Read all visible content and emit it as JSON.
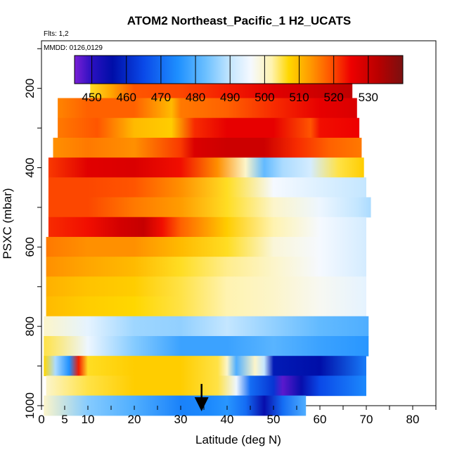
{
  "chart_data": {
    "type": "heatmap",
    "title": "ATOM2 Northeast_Pacific_1 H2_UCATS",
    "annotations": [
      "Flts: 1,2",
      "MMDD: 0126,0129"
    ],
    "xlabel": "Latitude (deg N)",
    "ylabel": "PSXC (mbar)",
    "xlim": [
      0,
      85
    ],
    "ylim": [
      1000,
      80
    ],
    "x_ticks": [
      0,
      5,
      10,
      20,
      30,
      40,
      50,
      60,
      70,
      80
    ],
    "y_ticks": [
      200,
      400,
      600,
      800,
      1000
    ],
    "colorbar": {
      "position": "top",
      "range": [
        445,
        540
      ],
      "ticks": [
        450,
        460,
        470,
        480,
        490,
        500,
        510,
        520,
        530
      ],
      "stops": [
        {
          "v": 445,
          "c": "#7a1fd6"
        },
        {
          "v": 450,
          "c": "#2a10c0"
        },
        {
          "v": 456,
          "c": "#000ea8"
        },
        {
          "v": 465,
          "c": "#0a49e8"
        },
        {
          "v": 475,
          "c": "#1e90ff"
        },
        {
          "v": 483,
          "c": "#6cc0ff"
        },
        {
          "v": 490,
          "c": "#c4e6ff"
        },
        {
          "v": 496,
          "c": "#f5f9ff"
        },
        {
          "v": 502,
          "c": "#fff3b0"
        },
        {
          "v": 507,
          "c": "#ffd700"
        },
        {
          "v": 513,
          "c": "#ff9c00"
        },
        {
          "v": 519,
          "c": "#ff5500"
        },
        {
          "v": 525,
          "c": "#ee0000"
        },
        {
          "v": 533,
          "c": "#b80000"
        },
        {
          "v": 540,
          "c": "#7a1010"
        }
      ]
    },
    "bands": [
      {
        "p": 200,
        "lat": [
          10.5,
          67
        ],
        "v": [
          [
            10.5,
            506
          ],
          [
            15,
            512
          ],
          [
            20,
            519
          ],
          [
            30,
            520
          ],
          [
            40,
            523
          ],
          [
            50,
            527
          ],
          [
            60,
            530
          ],
          [
            67,
            532
          ]
        ]
      },
      {
        "p": 250,
        "lat": [
          3.5,
          68
        ],
        "v": [
          [
            3.5,
            515
          ],
          [
            10,
            518
          ],
          [
            20,
            518
          ],
          [
            28,
            510
          ],
          [
            30,
            516
          ],
          [
            40,
            518
          ],
          [
            50,
            522
          ],
          [
            60,
            526
          ],
          [
            68,
            528
          ]
        ]
      },
      {
        "p": 300,
        "lat": [
          3.5,
          68.5
        ],
        "v": [
          [
            3.5,
            516
          ],
          [
            12,
            519
          ],
          [
            20,
            510
          ],
          [
            28,
            508
          ],
          [
            33,
            522
          ],
          [
            40,
            526
          ],
          [
            50,
            526
          ],
          [
            58,
            519
          ],
          [
            60,
            524
          ],
          [
            68.5,
            525
          ]
        ]
      },
      {
        "p": 350,
        "lat": [
          2.5,
          69
        ],
        "v": [
          [
            2.5,
            514
          ],
          [
            10,
            516
          ],
          [
            20,
            514
          ],
          [
            30,
            521
          ],
          [
            33,
            528
          ],
          [
            40,
            530
          ],
          [
            48,
            530
          ],
          [
            55,
            522
          ],
          [
            62,
            518
          ],
          [
            69,
            516
          ]
        ]
      },
      {
        "p": 400,
        "lat": [
          1.5,
          69.5
        ],
        "v": [
          [
            1.5,
            521
          ],
          [
            10,
            527
          ],
          [
            20,
            528
          ],
          [
            30,
            524
          ],
          [
            38,
            514
          ],
          [
            44,
            500
          ],
          [
            48,
            482
          ],
          [
            52,
            488
          ],
          [
            58,
            492
          ],
          [
            64,
            505
          ],
          [
            69.5,
            508
          ]
        ]
      },
      {
        "p": 450,
        "lat": [
          1.5,
          70
        ],
        "v": [
          [
            1.5,
            520
          ],
          [
            10,
            520
          ],
          [
            20,
            519
          ],
          [
            30,
            514
          ],
          [
            40,
            506
          ],
          [
            50,
            496
          ],
          [
            60,
            493
          ],
          [
            70,
            490
          ]
        ]
      },
      {
        "p": 500,
        "lat": [
          1.5,
          71
        ],
        "v": [
          [
            1.5,
            520
          ],
          [
            10,
            520
          ],
          [
            20,
            516
          ],
          [
            30,
            513
          ],
          [
            40,
            506
          ],
          [
            50,
            500
          ],
          [
            60,
            495
          ],
          [
            68,
            490
          ],
          [
            71,
            488
          ]
        ]
      },
      {
        "p": 550,
        "lat": [
          1.5,
          70
        ],
        "v": [
          [
            1.5,
            522
          ],
          [
            10,
            524
          ],
          [
            17,
            529
          ],
          [
            22,
            531
          ],
          [
            26,
            524
          ],
          [
            30,
            518
          ],
          [
            40,
            508
          ],
          [
            50,
            502
          ],
          [
            60,
            496
          ],
          [
            70,
            492
          ]
        ]
      },
      {
        "p": 600,
        "lat": [
          1,
          70
        ],
        "v": [
          [
            1,
            516
          ],
          [
            10,
            514
          ],
          [
            20,
            514
          ],
          [
            30,
            510
          ],
          [
            40,
            506
          ],
          [
            50,
            499
          ],
          [
            60,
            496
          ],
          [
            70,
            492
          ]
        ]
      },
      {
        "p": 650,
        "lat": [
          1,
          70
        ],
        "v": [
          [
            1,
            514
          ],
          [
            10,
            512
          ],
          [
            20,
            510
          ],
          [
            30,
            506
          ],
          [
            40,
            503
          ],
          [
            50,
            500
          ],
          [
            60,
            496
          ],
          [
            70,
            492
          ]
        ]
      },
      {
        "p": 700,
        "lat": [
          1,
          70
        ],
        "v": [
          [
            1,
            511
          ],
          [
            10,
            509
          ],
          [
            20,
            508
          ],
          [
            30,
            505
          ],
          [
            40,
            502
          ],
          [
            50,
            500
          ],
          [
            60,
            497
          ],
          [
            70,
            494
          ]
        ]
      },
      {
        "p": 750,
        "lat": [
          1,
          70
        ],
        "v": [
          [
            1,
            510
          ],
          [
            10,
            508
          ],
          [
            20,
            507
          ],
          [
            30,
            505
          ],
          [
            40,
            502
          ],
          [
            50,
            500
          ],
          [
            60,
            497
          ],
          [
            70,
            494
          ]
        ]
      },
      {
        "p": 800,
        "lat": [
          0.5,
          70.5
        ],
        "v": [
          [
            0.5,
            500
          ],
          [
            10,
            494
          ],
          [
            20,
            487
          ],
          [
            30,
            486
          ],
          [
            40,
            490
          ],
          [
            50,
            486
          ],
          [
            60,
            482
          ],
          [
            70.5,
            480
          ]
        ]
      },
      {
        "p": 850,
        "lat": [
          0.5,
          70.5
        ],
        "v": [
          [
            0.5,
            505
          ],
          [
            10,
            495
          ],
          [
            20,
            485
          ],
          [
            30,
            478
          ],
          [
            40,
            478
          ],
          [
            50,
            481
          ],
          [
            60,
            478
          ],
          [
            70.5,
            476
          ]
        ]
      },
      {
        "p": 900,
        "lat": [
          0.5,
          70
        ],
        "v": [
          [
            0.5,
            507
          ],
          [
            3,
            488
          ],
          [
            6,
            475
          ],
          [
            8,
            523
          ],
          [
            10,
            506
          ],
          [
            20,
            508
          ],
          [
            30,
            508
          ],
          [
            38,
            505
          ],
          [
            40,
            500
          ],
          [
            42,
            480
          ],
          [
            46,
            500
          ],
          [
            48,
            490
          ],
          [
            50,
            458
          ],
          [
            60,
            456
          ],
          [
            70,
            472
          ]
        ]
      },
      {
        "p": 950,
        "lat": [
          1,
          70
        ],
        "v": [
          [
            1,
            500
          ],
          [
            10,
            505
          ],
          [
            20,
            508
          ],
          [
            30,
            508
          ],
          [
            38,
            505
          ],
          [
            42,
            495
          ],
          [
            45,
            470
          ],
          [
            50,
            462
          ],
          [
            52,
            447
          ],
          [
            56,
            455
          ],
          [
            60,
            465
          ],
          [
            70,
            474
          ]
        ]
      },
      {
        "p": 1000,
        "lat": [
          0.5,
          57
        ],
        "v": [
          [
            0.5,
            500
          ],
          [
            10,
            485
          ],
          [
            20,
            480
          ],
          [
            30,
            473
          ],
          [
            36,
            474
          ],
          [
            40,
            476
          ],
          [
            44,
            470
          ],
          [
            48,
            455
          ],
          [
            52,
            470
          ],
          [
            57,
            480
          ]
        ]
      }
    ],
    "arrow": {
      "lat": 34.5,
      "p": 970
    }
  }
}
